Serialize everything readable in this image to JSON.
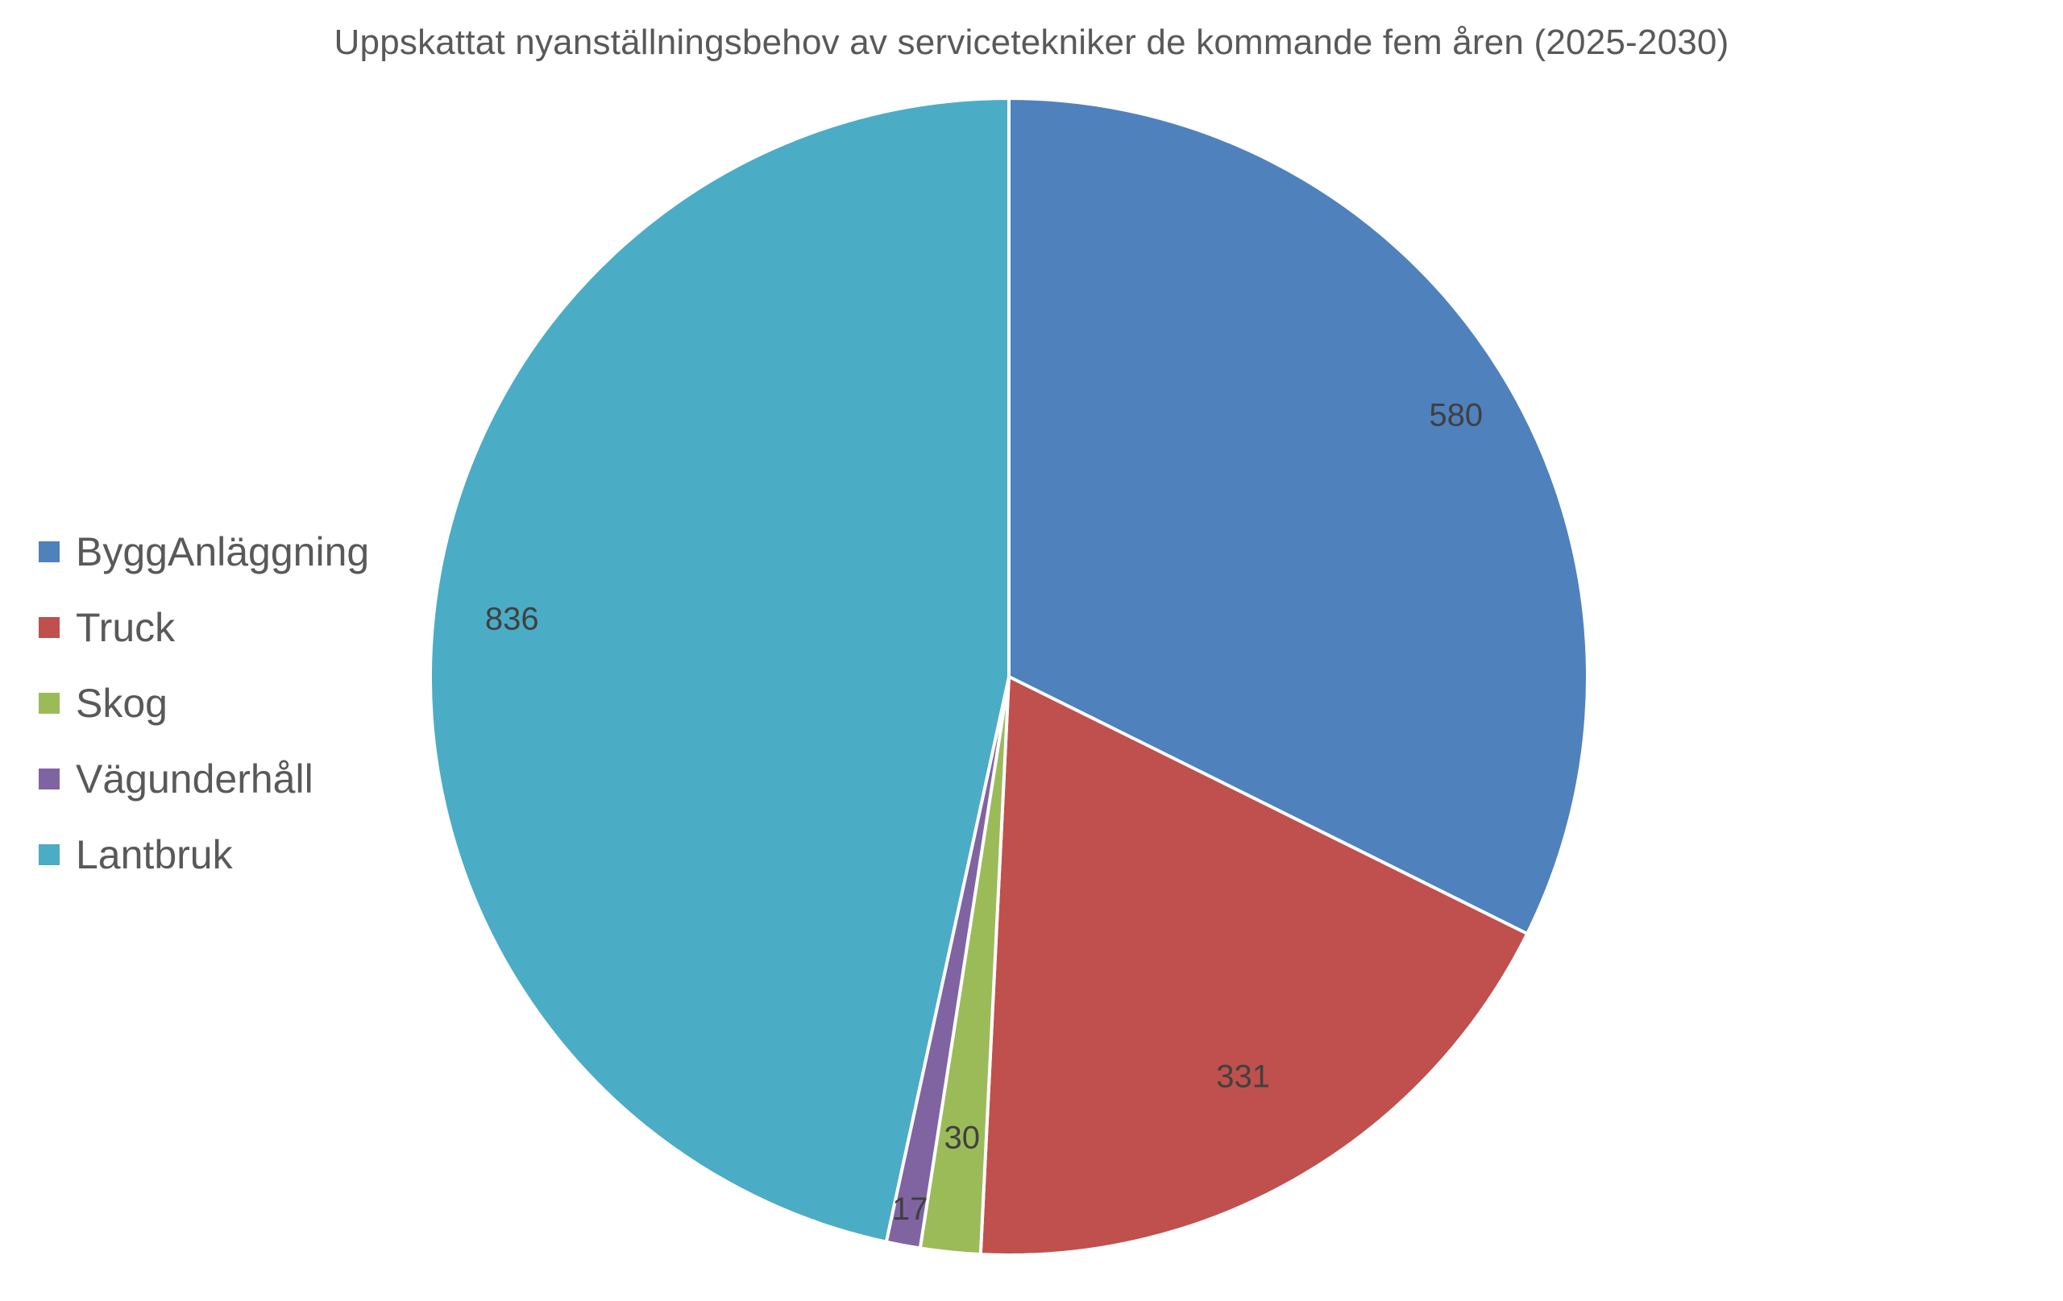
{
  "chart_data": {
    "type": "pie",
    "title": "Uppskattat nyanställningsbehov av servicetekniker de kommande fem åren (2025-2030)",
    "categories": [
      "ByggAnläggning",
      "Truck",
      "Skog",
      "Vägunderhåll",
      "Lantbruk"
    ],
    "values": [
      580,
      331,
      30,
      17,
      836
    ],
    "data_labels": [
      "580",
      "331",
      "30",
      "17",
      "836"
    ],
    "colors": [
      "#4F81BD",
      "#C0504D",
      "#9BBB59",
      "#8064A2",
      "#4BACC6"
    ],
    "legend_position": "left",
    "start_angle": "12 o'clock",
    "direction": "clockwise"
  }
}
